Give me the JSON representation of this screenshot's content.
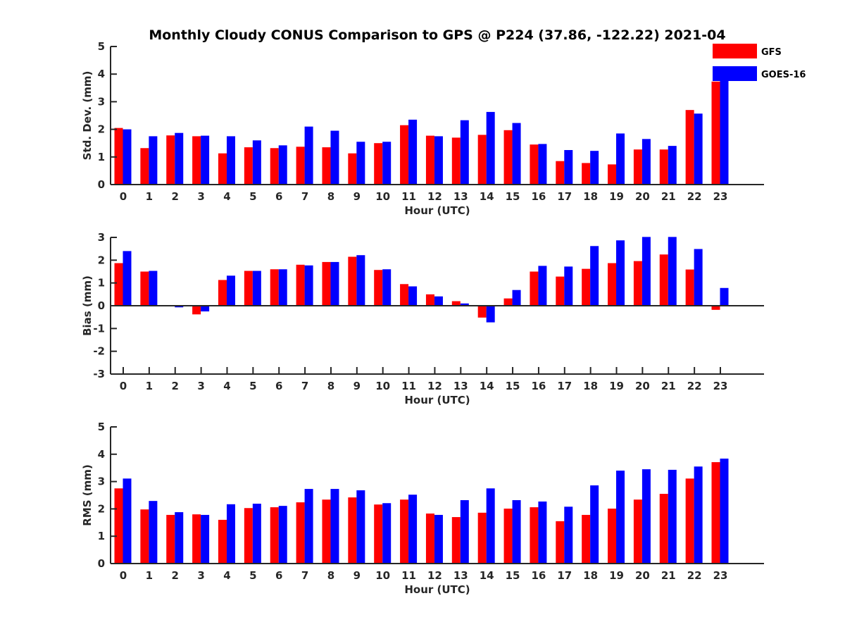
{
  "title": "Monthly Cloudy CONUS Comparison to GPS @ P224 (37.86, -122.22) 2021-04",
  "legend": {
    "position": "top-right",
    "entries": [
      {
        "name": "GFS",
        "color": "#ff0000"
      },
      {
        "name": "GOES-16",
        "color": "#0000ff"
      }
    ]
  },
  "chart_data": [
    {
      "type": "bar",
      "title": "Monthly Cloudy CONUS Comparison to GPS @ P224 (37.86, -122.22) 2021-04",
      "xlabel": "Hour (UTC)",
      "ylabel": "Std. Dev. (mm)",
      "ylim": [
        0,
        5
      ],
      "yticks": [
        "0",
        "1",
        "2",
        "3",
        "4",
        "5"
      ],
      "categories": [
        "0",
        "1",
        "2",
        "3",
        "4",
        "5",
        "6",
        "7",
        "8",
        "9",
        "10",
        "11",
        "12",
        "13",
        "14",
        "15",
        "16",
        "17",
        "18",
        "19",
        "20",
        "21",
        "22",
        "23"
      ],
      "series": [
        {
          "name": "GFS",
          "color": "#ff0000",
          "values": [
            2.05,
            1.32,
            1.78,
            1.75,
            1.13,
            1.35,
            1.32,
            1.37,
            1.35,
            1.13,
            1.5,
            2.15,
            1.77,
            1.7,
            1.8,
            1.97,
            1.45,
            0.85,
            0.78,
            0.73,
            1.27,
            1.27,
            2.7,
            3.73
          ]
        },
        {
          "name": "GOES-16",
          "color": "#0000ff",
          "values": [
            2.0,
            1.75,
            1.87,
            1.77,
            1.75,
            1.6,
            1.42,
            2.1,
            1.95,
            1.55,
            1.55,
            2.35,
            1.75,
            2.33,
            2.63,
            2.23,
            1.47,
            1.25,
            1.22,
            1.85,
            1.65,
            1.4,
            2.57,
            3.9
          ]
        }
      ],
      "legend": "top-right",
      "grid": false
    },
    {
      "type": "bar",
      "xlabel": "Hour (UTC)",
      "ylabel": "Bias (mm)",
      "ylim": [
        -3,
        3
      ],
      "yticks": [
        "-3",
        "-2",
        "-1",
        "0",
        "1",
        "2",
        "3"
      ],
      "categories": [
        "0",
        "1",
        "2",
        "3",
        "4",
        "5",
        "6",
        "7",
        "8",
        "9",
        "10",
        "11",
        "12",
        "13",
        "14",
        "15",
        "16",
        "17",
        "18",
        "19",
        "20",
        "21",
        "22",
        "23"
      ],
      "series": [
        {
          "name": "GFS",
          "color": "#ff0000",
          "values": [
            1.87,
            1.5,
            0.02,
            -0.38,
            1.13,
            1.53,
            1.6,
            1.8,
            1.92,
            2.15,
            1.57,
            0.95,
            0.5,
            0.2,
            -0.52,
            0.32,
            1.5,
            1.28,
            1.62,
            1.87,
            1.96,
            2.25,
            1.59,
            -0.18
          ]
        },
        {
          "name": "GOES-16",
          "color": "#0000ff",
          "values": [
            2.4,
            1.53,
            -0.07,
            -0.25,
            1.32,
            1.53,
            1.6,
            1.77,
            1.92,
            2.22,
            1.6,
            0.85,
            0.41,
            0.1,
            -0.73,
            0.69,
            1.75,
            1.72,
            2.62,
            2.87,
            3.02,
            3.02,
            2.49,
            0.78
          ]
        }
      ],
      "grid": false
    },
    {
      "type": "bar",
      "xlabel": "Hour (UTC)",
      "ylabel": "RMS (mm)",
      "ylim": [
        0,
        5
      ],
      "yticks": [
        "0",
        "1",
        "2",
        "3",
        "4",
        "5"
      ],
      "categories": [
        "0",
        "1",
        "2",
        "3",
        "4",
        "5",
        "6",
        "7",
        "8",
        "9",
        "10",
        "11",
        "12",
        "13",
        "14",
        "15",
        "16",
        "17",
        "18",
        "19",
        "20",
        "21",
        "22",
        "23"
      ],
      "series": [
        {
          "name": "GFS",
          "color": "#ff0000",
          "values": [
            2.75,
            1.98,
            1.78,
            1.8,
            1.6,
            2.03,
            2.06,
            2.24,
            2.34,
            2.42,
            2.16,
            2.34,
            1.83,
            1.7,
            1.86,
            2.01,
            2.06,
            1.55,
            1.78,
            2.01,
            2.34,
            2.55,
            3.11,
            3.71
          ]
        },
        {
          "name": "GOES-16",
          "color": "#0000ff",
          "values": [
            3.11,
            2.29,
            1.88,
            1.78,
            2.17,
            2.19,
            2.11,
            2.73,
            2.73,
            2.68,
            2.21,
            2.52,
            1.78,
            2.32,
            2.75,
            2.32,
            2.27,
            2.08,
            2.86,
            3.4,
            3.45,
            3.43,
            3.55,
            3.84
          ]
        }
      ],
      "grid": false
    }
  ]
}
